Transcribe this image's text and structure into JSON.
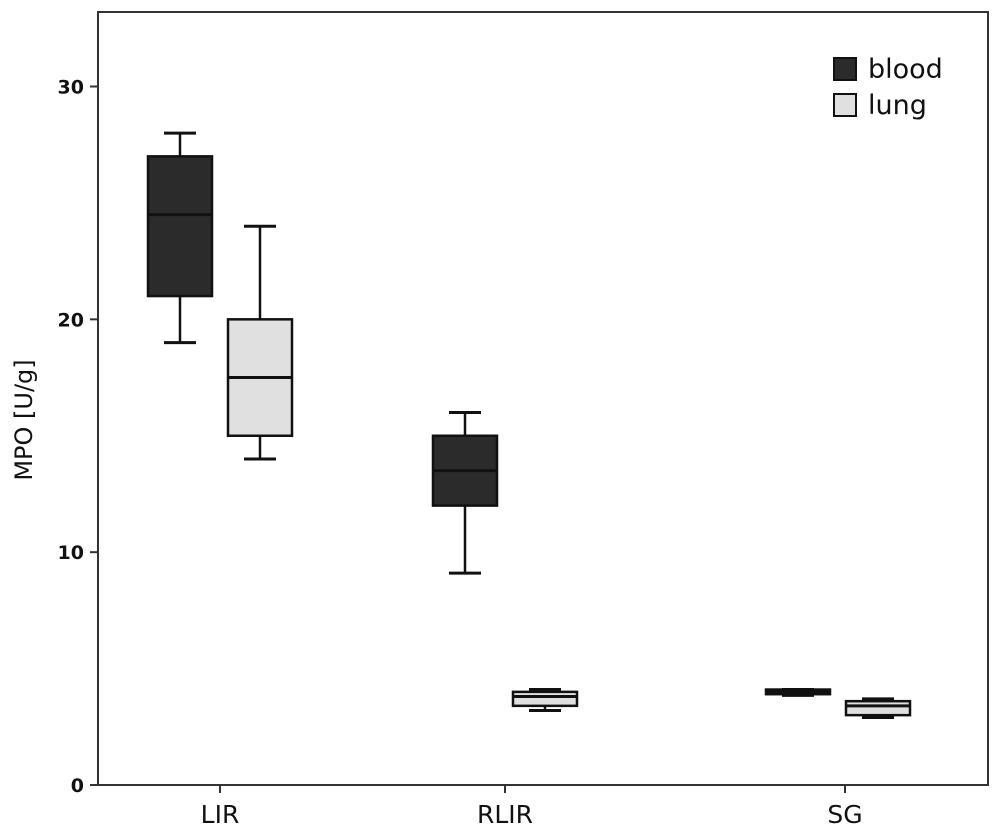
{
  "chart_data": {
    "type": "boxplot",
    "title": "",
    "xlabel": "",
    "ylabel": "MPO [U/g]",
    "ylim": [
      0,
      33.2
    ],
    "yticks": [
      0,
      10,
      20,
      30
    ],
    "grid": false,
    "legend_position": "top-right",
    "categories": [
      "LIR",
      "RLIR",
      "SG"
    ],
    "series": [
      {
        "name": "blood",
        "color": "#2b2b2b",
        "boxes": [
          {
            "min": 19.0,
            "q1": 21.0,
            "median": 24.5,
            "q3": 27.0,
            "max": 28.0
          },
          {
            "min": 9.1,
            "q1": 12.0,
            "median": 13.5,
            "q3": 15.0,
            "max": 16.0
          },
          {
            "min": 3.85,
            "q1": 3.9,
            "median": 4.0,
            "q3": 4.1,
            "max": 4.1
          }
        ]
      },
      {
        "name": "lung",
        "color": "#e0e0e0",
        "boxes": [
          {
            "min": 14.0,
            "q1": 15.0,
            "median": 17.5,
            "q3": 20.0,
            "max": 24.0
          },
          {
            "min": 3.2,
            "q1": 3.4,
            "median": 3.8,
            "q3": 4.0,
            "max": 4.1
          },
          {
            "min": 2.9,
            "q1": 3.0,
            "median": 3.4,
            "q3": 3.6,
            "max": 3.7
          }
        ]
      }
    ]
  }
}
